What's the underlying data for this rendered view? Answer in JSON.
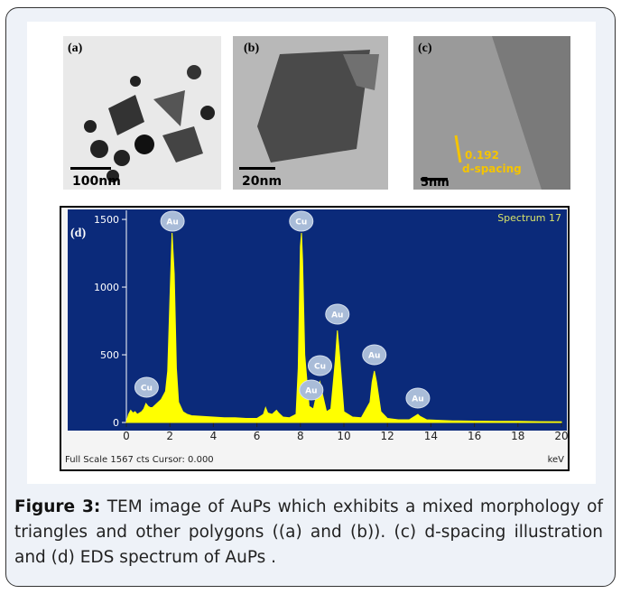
{
  "panels": [
    {
      "label": "(a)",
      "scale": "100nm"
    },
    {
      "label": "(b)",
      "scale": "20nm"
    },
    {
      "label": "(c)",
      "scale": "5nm",
      "spacing": "0.192",
      "note": "d-spacing"
    }
  ],
  "chart_data": {
    "type": "area",
    "label": "(d)",
    "title": "Spectrum 17",
    "footer": "Full Scale 1567 cts Cursor: 0.000",
    "x_unit": "keV",
    "color": "#ffff00",
    "x": [
      0,
      0.1,
      0.2,
      0.3,
      0.4,
      0.5,
      0.6,
      0.7,
      0.8,
      0.9,
      1.0,
      1.1,
      1.2,
      1.4,
      1.6,
      1.8,
      1.9,
      2.0,
      2.1,
      2.2,
      2.3,
      2.4,
      2.6,
      2.8,
      3.0,
      3.5,
      4.0,
      4.5,
      5.0,
      5.5,
      6.0,
      6.3,
      6.4,
      6.5,
      6.7,
      6.9,
      7.0,
      7.2,
      7.5,
      7.8,
      7.9,
      8.0,
      8.05,
      8.1,
      8.2,
      8.4,
      8.6,
      8.8,
      8.9,
      9.0,
      9.2,
      9.4,
      9.6,
      9.7,
      9.8,
      10.0,
      10.4,
      10.8,
      11.2,
      11.3,
      11.4,
      11.5,
      11.7,
      12.0,
      12.5,
      13.0,
      13.3,
      13.4,
      13.5,
      13.8,
      14.5,
      15,
      16,
      17,
      18,
      19,
      20
    ],
    "values": [
      0,
      60,
      90,
      70,
      80,
      60,
      70,
      80,
      100,
      140,
      120,
      110,
      110,
      140,
      170,
      230,
      380,
      900,
      1400,
      1100,
      400,
      150,
      80,
      60,
      50,
      45,
      40,
      35,
      35,
      30,
      30,
      60,
      110,
      70,
      60,
      90,
      70,
      40,
      35,
      60,
      400,
      1300,
      1400,
      1200,
      500,
      120,
      100,
      250,
      300,
      220,
      80,
      100,
      450,
      680,
      500,
      80,
      40,
      35,
      150,
      300,
      380,
      300,
      80,
      30,
      20,
      20,
      50,
      60,
      45,
      20,
      15,
      12,
      10,
      8,
      8,
      6,
      5
    ],
    "xlim": [
      0,
      20
    ],
    "ylim": [
      0,
      1567
    ],
    "xticks": [
      0,
      2,
      4,
      6,
      8,
      10,
      12,
      14,
      16,
      18,
      20
    ],
    "yticks": [
      0,
      500,
      1000,
      1500
    ],
    "annotations": [
      {
        "label": "Cu",
        "x": 0.93
      },
      {
        "label": "Au",
        "x": 2.12
      },
      {
        "label": "Cu",
        "x": 8.04
      },
      {
        "label": "Au",
        "x": 8.5
      },
      {
        "label": "Cu",
        "x": 8.9
      },
      {
        "label": "Au",
        "x": 9.7
      },
      {
        "label": "Au",
        "x": 11.4
      },
      {
        "label": "Au",
        "x": 13.4
      }
    ]
  },
  "caption": {
    "label": "Figure 3:",
    "text": " TEM image of AuPs which exhibits a mixed morphology of triangles and other polygons ((a) and (b)). (c) d-spacing illustration and (d) EDS spectrum of AuPs ."
  }
}
